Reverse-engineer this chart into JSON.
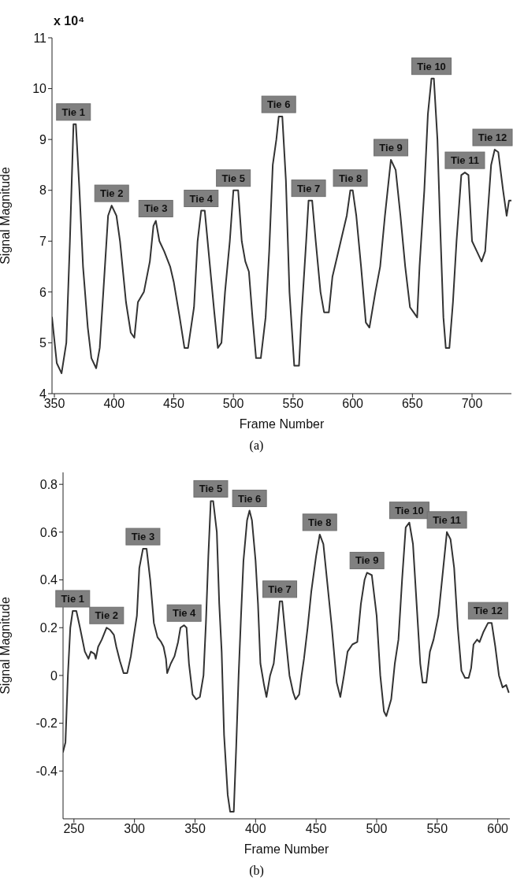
{
  "chart_data": [
    {
      "type": "line",
      "xlabel": "Frame Number",
      "ylabel": "Signal Magnitude",
      "xlim": [
        348,
        733
      ],
      "ylim": [
        4,
        11
      ],
      "xticks": [
        350,
        400,
        450,
        500,
        550,
        600,
        650,
        700
      ],
      "yticks": [
        4,
        5,
        6,
        7,
        8,
        9,
        10,
        11
      ],
      "x": [
        348,
        352,
        356,
        360,
        363,
        366,
        368,
        371,
        374,
        378,
        381,
        385,
        388,
        391,
        395,
        398,
        402,
        405,
        410,
        414,
        417,
        420,
        425,
        430,
        433,
        435,
        438,
        442,
        447,
        450,
        455,
        459,
        462,
        467,
        470,
        473,
        476,
        480,
        484,
        487,
        490,
        493,
        497,
        500,
        504,
        507,
        510,
        513,
        516,
        519,
        523,
        527,
        530,
        533,
        536,
        538,
        541,
        544,
        547,
        551,
        555,
        557,
        561,
        563,
        566,
        569,
        573,
        576,
        580,
        583,
        587,
        590,
        595,
        598,
        600,
        603,
        607,
        611,
        614,
        619,
        623,
        627,
        632,
        636,
        640,
        644,
        648,
        651,
        654,
        656,
        660,
        663,
        666,
        668,
        671,
        673,
        676,
        678,
        681,
        684,
        687,
        691,
        694,
        697,
        700,
        704,
        708,
        711,
        713,
        716,
        719,
        722,
        726,
        729,
        731,
        733
      ],
      "series": [
        {
          "color": "#333333",
          "values": [
            5.5,
            4.6,
            4.4,
            5.0,
            7.0,
            9.3,
            9.3,
            8.0,
            6.5,
            5.3,
            4.7,
            4.5,
            4.9,
            6.0,
            7.5,
            7.7,
            7.5,
            7.0,
            5.8,
            5.2,
            5.1,
            5.8,
            6.0,
            6.6,
            7.3,
            7.4,
            7.0,
            6.8,
            6.5,
            6.2,
            5.5,
            4.9,
            4.9,
            5.7,
            7.0,
            7.6,
            7.6,
            6.6,
            5.6,
            4.9,
            5.0,
            6.0,
            7.0,
            8.0,
            8.0,
            7.0,
            6.6,
            6.4,
            5.5,
            4.7,
            4.7,
            5.5,
            6.8,
            8.5,
            9.0,
            9.45,
            9.45,
            8.2,
            6.0,
            4.55,
            4.55,
            5.5,
            7.0,
            7.8,
            7.8,
            7.0,
            6.0,
            5.6,
            5.6,
            6.3,
            6.7,
            7.0,
            7.5,
            8.0,
            8.0,
            7.5,
            6.5,
            5.4,
            5.3,
            6.0,
            6.5,
            7.5,
            8.6,
            8.4,
            7.5,
            6.5,
            5.7,
            5.6,
            5.5,
            6.5,
            8.0,
            9.5,
            10.2,
            10.2,
            9.0,
            7.5,
            5.5,
            4.9,
            4.9,
            5.8,
            7.0,
            8.3,
            8.35,
            8.3,
            7.0,
            6.8,
            6.6,
            6.8,
            7.5,
            8.5,
            8.8,
            8.75,
            8.0,
            7.5,
            7.8,
            7.8
          ]
        }
      ],
      "annotations": [
        {
          "text": "Tie 1",
          "x": 366,
          "y": 9.3
        },
        {
          "text": "Tie 2",
          "x": 398,
          "y": 7.7
        },
        {
          "text": "Tie 3",
          "x": 435,
          "y": 7.4
        },
        {
          "text": "Tie 4",
          "x": 473,
          "y": 7.6
        },
        {
          "text": "Tie 5",
          "x": 500,
          "y": 8.0
        },
        {
          "text": "Tie 6",
          "x": 538,
          "y": 9.45
        },
        {
          "text": "Tie 7",
          "x": 563,
          "y": 7.8
        },
        {
          "text": "Tie 8",
          "x": 598,
          "y": 8.0
        },
        {
          "text": "Tie 9",
          "x": 632,
          "y": 8.6
        },
        {
          "text": "Tie 10",
          "x": 666,
          "y": 10.2
        },
        {
          "text": "Tie 11",
          "x": 694,
          "y": 8.35
        },
        {
          "text": "Tie 12",
          "x": 719,
          "y": 8.8
        },
        "x 10⁴",
        "(a)"
      ]
    },
    {
      "type": "line",
      "xlabel": "Frame Number",
      "ylabel": "Signal Magnitude",
      "xlim": [
        241,
        610
      ],
      "ylim": [
        -0.6,
        0.85
      ],
      "xticks": [
        250,
        300,
        350,
        400,
        450,
        500,
        550,
        600
      ],
      "yticks": [
        -0.4,
        -0.2,
        0,
        0.2,
        0.4,
        0.6,
        0.8
      ],
      "x": [
        241,
        243,
        245,
        247,
        249,
        252,
        255,
        259,
        262,
        264,
        267,
        268,
        270,
        273,
        277,
        280,
        283,
        285,
        288,
        291,
        294,
        297,
        299,
        302,
        304,
        307,
        310,
        313,
        316,
        319,
        322,
        324,
        326,
        327,
        330,
        333,
        336,
        338,
        341,
        343,
        345,
        348,
        351,
        354,
        357,
        359,
        361,
        363,
        365,
        368,
        370,
        372,
        374,
        377,
        379,
        382,
        384,
        386,
        388,
        390,
        393,
        395,
        397,
        400,
        402,
        404,
        407,
        409,
        412,
        415,
        418,
        420,
        422,
        425,
        428,
        431,
        433,
        436,
        438,
        440,
        443,
        446,
        450,
        453,
        456,
        459,
        463,
        467,
        470,
        473,
        476,
        480,
        484,
        487,
        490,
        492,
        496,
        500,
        503,
        506,
        508,
        512,
        515,
        518,
        521,
        524,
        527,
        530,
        533,
        536,
        538,
        541,
        544,
        547,
        551,
        555,
        558,
        561,
        564,
        567,
        570,
        573,
        576,
        578,
        580,
        583,
        585,
        588,
        592,
        595,
        598,
        601,
        604,
        607,
        609
      ],
      "series": [
        {
          "color": "#333333",
          "values": [
            -0.32,
            -0.28,
            0.0,
            0.2,
            0.27,
            0.27,
            0.2,
            0.1,
            0.07,
            0.1,
            0.09,
            0.07,
            0.12,
            0.15,
            0.2,
            0.19,
            0.17,
            0.12,
            0.06,
            0.01,
            0.01,
            0.08,
            0.15,
            0.25,
            0.45,
            0.53,
            0.53,
            0.4,
            0.22,
            0.16,
            0.14,
            0.12,
            0.07,
            0.01,
            0.05,
            0.08,
            0.14,
            0.2,
            0.21,
            0.2,
            0.05,
            -0.08,
            -0.1,
            -0.09,
            0.0,
            0.22,
            0.5,
            0.73,
            0.73,
            0.6,
            0.3,
            0.1,
            -0.25,
            -0.5,
            -0.57,
            -0.57,
            -0.3,
            0.0,
            0.25,
            0.48,
            0.65,
            0.69,
            0.65,
            0.48,
            0.3,
            0.05,
            -0.04,
            -0.09,
            0.0,
            0.05,
            0.2,
            0.31,
            0.31,
            0.15,
            0.0,
            -0.07,
            -0.1,
            -0.08,
            0.0,
            0.07,
            0.2,
            0.35,
            0.5,
            0.59,
            0.55,
            0.4,
            0.2,
            -0.03,
            -0.09,
            0.0,
            0.1,
            0.13,
            0.14,
            0.3,
            0.4,
            0.43,
            0.42,
            0.25,
            0.0,
            -0.15,
            -0.17,
            -0.1,
            0.05,
            0.15,
            0.4,
            0.62,
            0.64,
            0.55,
            0.3,
            0.05,
            -0.03,
            -0.03,
            0.1,
            0.15,
            0.25,
            0.45,
            0.6,
            0.57,
            0.45,
            0.2,
            0.02,
            -0.01,
            -0.01,
            0.03,
            0.13,
            0.15,
            0.14,
            0.18,
            0.22,
            0.22,
            0.12,
            0.0,
            -0.05,
            -0.04,
            -0.07
          ]
        }
      ],
      "annotations": [
        {
          "text": "Tie 1",
          "x": 249,
          "y": 0.27
        },
        {
          "text": "Tie 2",
          "x": 277,
          "y": 0.2
        },
        {
          "text": "Tie 3",
          "x": 307,
          "y": 0.53
        },
        {
          "text": "Tie 4",
          "x": 341,
          "y": 0.21
        },
        {
          "text": "Tie 5",
          "x": 363,
          "y": 0.73
        },
        {
          "text": "Tie 6",
          "x": 395,
          "y": 0.69
        },
        {
          "text": "Tie 7",
          "x": 420,
          "y": 0.31
        },
        {
          "text": "Tie 8",
          "x": 453,
          "y": 0.59
        },
        {
          "text": "Tie 9",
          "x": 492,
          "y": 0.43
        },
        {
          "text": "Tie 10",
          "x": 527,
          "y": 0.64
        },
        {
          "text": "Tie 11",
          "x": 558,
          "y": 0.6
        },
        {
          "text": "Tie 12",
          "x": 592,
          "y": 0.22
        },
        "(b)"
      ]
    }
  ]
}
